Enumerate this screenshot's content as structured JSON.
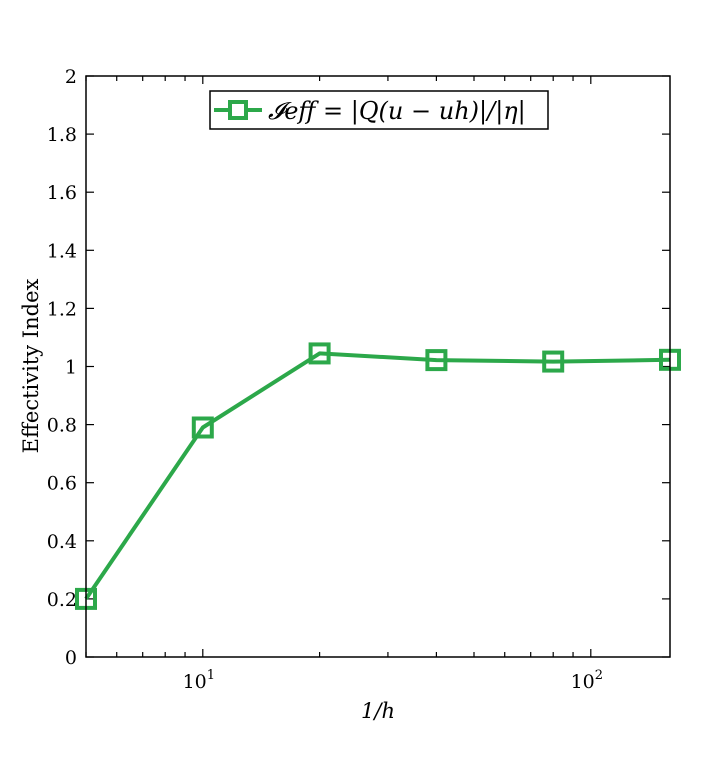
{
  "chart_data": {
    "type": "line",
    "x_scale": "log",
    "xlabel": "1/h",
    "ylabel": "Effectivity Index",
    "xlim": [
      5,
      160
    ],
    "ylim": [
      0,
      2
    ],
    "x_ticks": [
      {
        "value": 10,
        "base": "10",
        "exp": "1"
      },
      {
        "value": 100,
        "base": "10",
        "exp": "2"
      }
    ],
    "y_ticks": [
      0,
      0.2,
      0.4,
      0.6,
      0.8,
      1,
      1.2,
      1.4,
      1.6,
      1.8,
      2
    ],
    "y_tick_labels": [
      "0",
      "0.2",
      "0.4",
      "0.6",
      "0.8",
      "1",
      "1.2",
      "1.4",
      "1.6",
      "1.8",
      "2"
    ],
    "grid": false,
    "legend_position": "top-center",
    "series": [
      {
        "name": "𝓘eff = |Q(u − uh)|/|η|",
        "color": "#2ca84a",
        "marker": "square",
        "x": [
          5,
          10,
          20,
          40,
          80,
          160
        ],
        "y": [
          0.2,
          0.79,
          1.045,
          1.022,
          1.017,
          1.023
        ]
      }
    ]
  }
}
